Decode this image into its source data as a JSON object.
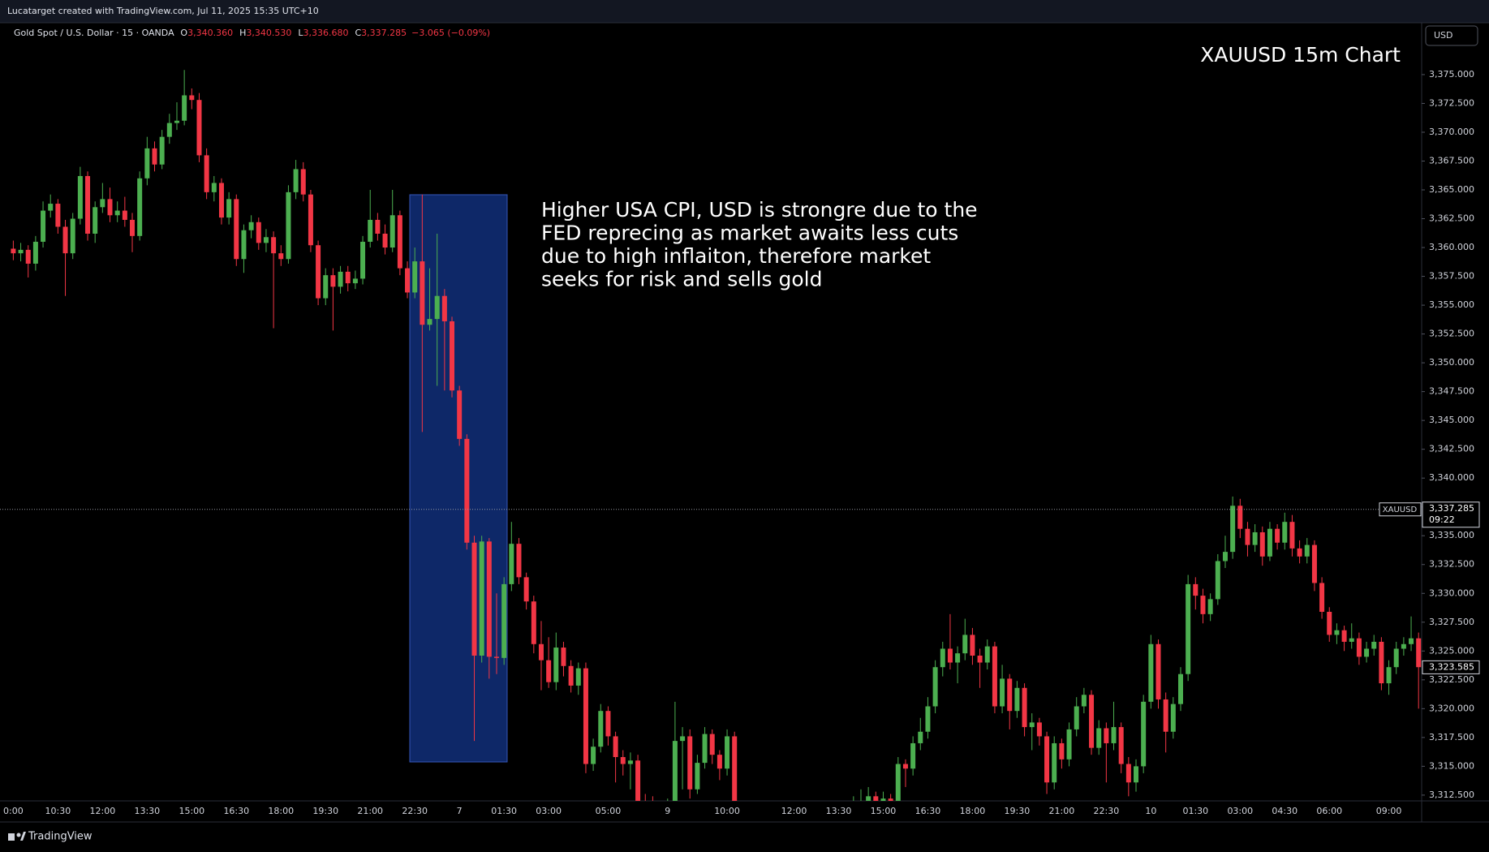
{
  "header": {
    "credit": "Lucatarget created with TradingView.com, Jul 11, 2025 15:35 UTC+10",
    "currency": "USD"
  },
  "legend": {
    "symbol": "Gold Spot / U.S. Dollar · 15 · OANDA",
    "ohlc": [
      {
        "key": "O",
        "value": "3,340.360"
      },
      {
        "key": "H",
        "value": "3,340.530"
      },
      {
        "key": "L",
        "value": "3,336.680"
      },
      {
        "key": "C",
        "value": "3,337.285"
      }
    ],
    "change": "−3.065 (−0.09%)"
  },
  "annotation": {
    "lines": [
      "Higher USA CPI, USD is strongre due to the",
      "FED reprecing as market awaits less cuts",
      "due to high inflaiton, therefore market",
      "seeks for risk and sells gold"
    ]
  },
  "footer": {
    "brand": "TradingView"
  },
  "chart_data": {
    "type": "candlestick",
    "title": "XAUUSD 15m Chart",
    "up_color": "#4caf50",
    "down_color": "#f23645",
    "categories": [
      "0:00",
      null,
      null,
      null,
      null,
      null,
      "10:30",
      null,
      null,
      null,
      null,
      null,
      "12:00",
      null,
      null,
      null,
      null,
      null,
      "13:30",
      null,
      null,
      null,
      null,
      null,
      "15:00",
      null,
      null,
      null,
      null,
      null,
      "16:30",
      null,
      null,
      null,
      null,
      null,
      "18:00",
      null,
      null,
      null,
      null,
      null,
      "19:30",
      null,
      null,
      null,
      null,
      null,
      "21:00",
      null,
      null,
      null,
      null,
      null,
      "22:30",
      null,
      null,
      null,
      null,
      null,
      "7",
      null,
      null,
      null,
      null,
      null,
      "01:30",
      null,
      null,
      null,
      null,
      null,
      "03:00",
      null,
      null,
      null,
      null,
      null,
      null,
      null,
      "05:00",
      null,
      null,
      null,
      null,
      null,
      null,
      null,
      "9",
      null,
      null,
      null,
      null,
      null,
      null,
      null,
      "10:00",
      null,
      null,
      null,
      null,
      null,
      null,
      null,
      null,
      "12:00",
      null,
      null,
      null,
      null,
      null,
      "13:30",
      null,
      null,
      null,
      null,
      null,
      "15:00",
      null,
      null,
      null,
      null,
      null,
      "16:30",
      null,
      null,
      null,
      null,
      null,
      "18:00",
      null,
      null,
      null,
      null,
      null,
      "19:30",
      null,
      null,
      null,
      null,
      null,
      "21:00",
      null,
      null,
      null,
      null,
      null,
      "22:30",
      null,
      null,
      null,
      null,
      null,
      "10",
      null,
      null,
      null,
      null,
      null,
      "01:30",
      null,
      null,
      null,
      null,
      null,
      "03:00",
      null,
      null,
      null,
      null,
      null,
      "04:30",
      null,
      null,
      null,
      null,
      null,
      "06:00",
      null,
      null,
      null,
      null,
      null,
      null,
      null,
      "09:00",
      null,
      null,
      null,
      null
    ],
    "open": [
      3359.9,
      3359.5,
      3359.8,
      3358.6,
      3360.5,
      3363.2,
      3363.8,
      3361.8,
      3359.5,
      3362.5,
      3366.2,
      3361.2,
      3363.5,
      3364.2,
      3362.8,
      3363.2,
      3362.4,
      3361.0,
      3366.0,
      3368.6,
      3367.2,
      3369.6,
      3370.8,
      3371.0,
      3373.2,
      3372.8,
      3368.0,
      3364.8,
      3365.6,
      3362.6,
      3364.2,
      3359.0,
      3361.5,
      3362.2,
      3360.4,
      3360.9,
      3359.5,
      3359.0,
      3364.8,
      3366.8,
      3364.6,
      3360.2,
      3355.6,
      3357.6,
      3356.6,
      3357.9,
      3356.9,
      3357.3,
      3360.5,
      3362.4,
      3361.2,
      3360.0,
      3362.8,
      3358.2,
      3356.1,
      3358.8,
      3353.3,
      3353.8,
      3355.8,
      3353.6,
      3347.6,
      3343.4,
      3334.4,
      3324.6,
      3334.5,
      3324.5,
      3324.4,
      3330.8,
      3334.3,
      3331.4,
      3329.3,
      3325.6,
      3324.2,
      3322.3,
      3325.3,
      3323.7,
      3322.0,
      3323.5,
      3315.2,
      3316.7,
      3319.8,
      3317.6,
      3315.8,
      3315.2,
      3315.5,
      3312.0,
      3311.9,
      3311.0,
      3310.5,
      3311.5,
      3317.2,
      3317.6,
      3313.0,
      3315.3,
      3317.8,
      3316.0,
      3314.8,
      3317.6,
      null,
      null,
      null,
      null,
      null,
      null,
      null,
      null,
      null,
      null,
      null,
      null,
      null,
      null,
      null,
      3311.5,
      3311.8,
      3312.0,
      3312.4,
      3311.8,
      3312.2,
      3312.0,
      3315.2,
      3314.8,
      3317.0,
      3318.0,
      3320.2,
      3323.6,
      3325.2,
      3324.0,
      3324.8,
      3326.4,
      3324.6,
      3324.0,
      3325.4,
      3320.2,
      3322.6,
      3319.8,
      3321.8,
      3318.4,
      3318.8,
      3317.6,
      3313.6,
      3317.0,
      3315.6,
      3318.2,
      3320.2,
      3321.2,
      3316.6,
      3318.3,
      3317.0,
      3318.4,
      3315.2,
      3313.6,
      3315.0,
      3320.6,
      3325.6,
      3320.8,
      3318.0,
      3320.4,
      3323.0,
      3330.8,
      3329.8,
      3328.2,
      3329.5,
      3332.8,
      3333.6,
      3337.6,
      3335.6,
      3334.2,
      3335.3,
      3333.2,
      3335.6,
      3334.4,
      3336.2,
      3333.9,
      3333.2,
      3334.2,
      3330.9,
      3328.4,
      3326.4,
      3326.8,
      3325.8,
      3326.1,
      3324.5,
      3325.2,
      3325.8,
      3322.2,
      3323.6,
      3325.2,
      3325.6,
      3326.1
    ],
    "high": [
      3360.6,
      3360.4,
      3360.2,
      3361.0,
      3364.0,
      3364.6,
      3364.2,
      3362.4,
      3363.0,
      3367.0,
      3366.6,
      3364.0,
      3365.6,
      3365.2,
      3364.0,
      3364.4,
      3363.0,
      3366.6,
      3369.6,
      3369.2,
      3370.2,
      3371.6,
      3372.6,
      3375.4,
      3373.8,
      3373.4,
      3368.6,
      3366.2,
      3366.0,
      3364.8,
      3364.6,
      3362.0,
      3362.8,
      3362.6,
      3361.6,
      3361.4,
      3360.2,
      3365.4,
      3367.6,
      3367.4,
      3365.0,
      3360.6,
      3358.2,
      3358.2,
      3358.4,
      3358.4,
      3358.0,
      3361.0,
      3365.0,
      3363.0,
      3362.0,
      3365.0,
      3363.2,
      3358.8,
      3360.0,
      3364.6,
      3358.2,
      3361.2,
      3356.4,
      3354.0,
      3348.0,
      3343.8,
      3335.0,
      3335.0,
      3334.8,
      3330.0,
      3331.4,
      3336.2,
      3334.8,
      3331.8,
      3329.8,
      3327.6,
      3326.2,
      3326.6,
      3325.8,
      3324.2,
      3324.0,
      3324.0,
      3317.4,
      3320.4,
      3320.2,
      3318.0,
      3316.4,
      3316.2,
      3316.0,
      3312.6,
      3312.4,
      3311.6,
      3312.2,
      3320.6,
      3318.4,
      3318.2,
      3316.0,
      3318.4,
      3318.2,
      3316.4,
      3318.2,
      3318.0,
      null,
      null,
      null,
      null,
      null,
      null,
      null,
      null,
      null,
      null,
      null,
      null,
      null,
      null,
      null,
      3312.4,
      3313.0,
      3313.2,
      3312.8,
      3312.8,
      3312.6,
      3315.8,
      3315.6,
      3317.6,
      3319.2,
      3321.0,
      3324.2,
      3325.8,
      3328.2,
      3325.4,
      3327.8,
      3327.0,
      3325.2,
      3326.0,
      3325.8,
      3323.8,
      3323.0,
      3322.4,
      3322.2,
      3319.6,
      3319.2,
      3318.0,
      3317.6,
      3317.4,
      3318.8,
      3321.0,
      3321.8,
      3321.6,
      3319.0,
      3318.8,
      3320.6,
      3318.8,
      3315.8,
      3315.6,
      3321.2,
      3326.4,
      3326.0,
      3321.4,
      3321.0,
      3323.6,
      3331.6,
      3331.4,
      3330.4,
      3330.0,
      3333.4,
      3335.0,
      3338.4,
      3338.2,
      3336.2,
      3336.0,
      3335.8,
      3336.2,
      3336.0,
      3337.0,
      3336.8,
      3334.6,
      3334.8,
      3334.6,
      3331.4,
      3328.8,
      3327.4,
      3327.2,
      3327.4,
      3326.6,
      3325.8,
      3326.4,
      3326.2,
      3324.2,
      3325.8,
      3326.2,
      3328.0,
      3326.6
    ],
    "low": [
      3358.9,
      3358.8,
      3357.4,
      3358.0,
      3360.0,
      3362.6,
      3361.2,
      3355.8,
      3359.0,
      3362.0,
      3360.6,
      3360.4,
      3363.0,
      3362.2,
      3362.2,
      3361.8,
      3359.6,
      3360.6,
      3365.4,
      3366.6,
      3366.8,
      3369.0,
      3370.2,
      3370.6,
      3372.0,
      3367.4,
      3364.2,
      3364.0,
      3362.0,
      3362.0,
      3358.4,
      3357.8,
      3360.8,
      3359.8,
      3359.6,
      3353.0,
      3358.4,
      3358.6,
      3364.2,
      3364.0,
      3359.6,
      3355.0,
      3355.0,
      3352.8,
      3356.0,
      3356.2,
      3356.4,
      3356.8,
      3360.0,
      3360.6,
      3359.4,
      3359.6,
      3357.6,
      3355.6,
      3355.6,
      3344.0,
      3352.8,
      3348.0,
      3347.6,
      3347.0,
      3342.8,
      3333.8,
      3317.2,
      3324.0,
      3322.6,
      3323.0,
      3323.8,
      3330.2,
      3330.8,
      3328.6,
      3324.8,
      3321.6,
      3321.8,
      3321.6,
      3322.8,
      3321.4,
      3321.2,
      3314.4,
      3314.6,
      3316.2,
      3316.8,
      3313.6,
      3314.2,
      3313.0,
      3311.2,
      3311.0,
      3310.2,
      3309.8,
      3309.8,
      3311.0,
      3313.0,
      3312.2,
      3312.6,
      3314.8,
      3315.2,
      3313.8,
      3314.2,
      3311.2,
      null,
      null,
      null,
      null,
      null,
      null,
      null,
      null,
      null,
      null,
      null,
      null,
      null,
      null,
      null,
      3310.8,
      3311.2,
      3311.4,
      3311.0,
      3311.2,
      3311.4,
      3311.6,
      3313.2,
      3314.2,
      3316.4,
      3317.4,
      3319.6,
      3322.8,
      3323.4,
      3322.2,
      3324.2,
      3323.8,
      3321.8,
      3323.4,
      3319.6,
      3319.6,
      3318.2,
      3319.2,
      3317.6,
      3316.4,
      3316.8,
      3312.6,
      3313.0,
      3314.8,
      3315.0,
      3317.6,
      3319.6,
      3316.0,
      3316.0,
      3313.6,
      3316.4,
      3314.4,
      3312.4,
      3312.8,
      3314.4,
      3320.0,
      3320.0,
      3316.2,
      3317.4,
      3319.8,
      3322.4,
      3328.6,
      3327.4,
      3327.6,
      3329.0,
      3332.2,
      3333.0,
      3334.8,
      3333.2,
      3333.6,
      3332.4,
      3332.8,
      3333.8,
      3333.8,
      3333.2,
      3332.6,
      3332.6,
      3330.2,
      3327.8,
      3325.8,
      3325.6,
      3325.0,
      3325.2,
      3323.8,
      3324.0,
      3324.6,
      3321.6,
      3321.2,
      3323.0,
      3324.6,
      3325.0,
      3320.0
    ],
    "close": [
      3359.5,
      3359.8,
      3358.6,
      3360.5,
      3363.2,
      3363.8,
      3361.8,
      3359.5,
      3362.5,
      3366.2,
      3361.2,
      3363.5,
      3364.2,
      3362.8,
      3363.2,
      3362.4,
      3361.0,
      3366.0,
      3368.6,
      3367.2,
      3369.6,
      3370.8,
      3371.0,
      3373.2,
      3372.8,
      3368.0,
      3364.8,
      3365.6,
      3362.6,
      3364.2,
      3359.0,
      3361.5,
      3362.2,
      3360.4,
      3360.9,
      3359.5,
      3359.0,
      3364.8,
      3366.8,
      3364.6,
      3360.2,
      3355.6,
      3357.6,
      3356.6,
      3357.9,
      3356.9,
      3357.3,
      3360.5,
      3362.4,
      3361.2,
      3360.0,
      3362.8,
      3358.2,
      3356.1,
      3358.8,
      3353.3,
      3353.8,
      3355.8,
      3353.6,
      3347.6,
      3343.4,
      3334.4,
      3324.6,
      3334.5,
      3324.5,
      3324.4,
      3330.8,
      3334.3,
      3331.4,
      3329.3,
      3325.6,
      3324.2,
      3322.3,
      3325.3,
      3323.7,
      3322.0,
      3323.5,
      3315.2,
      3316.7,
      3319.8,
      3317.6,
      3315.8,
      3315.2,
      3315.5,
      3312.0,
      3311.9,
      3311.0,
      3310.5,
      3311.5,
      3317.2,
      3317.6,
      3313.0,
      3315.3,
      3317.8,
      3316.0,
      3314.8,
      3317.6,
      3312.0,
      null,
      null,
      null,
      null,
      null,
      null,
      null,
      null,
      null,
      null,
      null,
      null,
      null,
      null,
      null,
      3311.8,
      3312.0,
      3312.4,
      3311.8,
      3312.2,
      3312.0,
      3315.2,
      3314.8,
      3317.0,
      3318.0,
      3320.2,
      3323.6,
      3325.2,
      3324.0,
      3324.8,
      3326.4,
      3324.6,
      3324.0,
      3325.4,
      3320.2,
      3322.6,
      3319.8,
      3321.8,
      3318.4,
      3318.8,
      3317.6,
      3313.6,
      3317.0,
      3315.6,
      3318.2,
      3320.2,
      3321.2,
      3316.6,
      3318.3,
      3317.0,
      3318.4,
      3315.2,
      3313.6,
      3315.0,
      3320.6,
      3325.6,
      3320.8,
      3318.0,
      3320.4,
      3323.0,
      3330.8,
      3329.8,
      3328.2,
      3329.5,
      3332.8,
      3333.6,
      3337.6,
      3335.6,
      3334.2,
      3335.3,
      3333.2,
      3335.6,
      3334.4,
      3336.2,
      3333.9,
      3333.2,
      3334.2,
      3330.9,
      3328.4,
      3326.4,
      3326.8,
      3325.8,
      3326.1,
      3324.5,
      3325.2,
      3325.8,
      3322.2,
      3323.6,
      3325.2,
      3325.6,
      3326.1,
      3323.6
    ],
    "ylim": [
      3312.0,
      3379.5
    ],
    "yticks": [
      {
        "value": 3312.5,
        "label": "3,312.500"
      },
      {
        "value": 3315,
        "label": "3,315.000"
      },
      {
        "value": 3317.5,
        "label": "3,317.500"
      },
      {
        "value": 3320,
        "label": "3,320.000"
      },
      {
        "value": 3322.5,
        "label": "3,322.500"
      },
      {
        "value": 3325,
        "label": "3,325.000"
      },
      {
        "value": 3327.5,
        "label": "3,327.500"
      },
      {
        "value": 3330,
        "label": "3,330.000"
      },
      {
        "value": 3332.5,
        "label": "3,332.500"
      },
      {
        "value": 3335,
        "label": "3,335.000"
      },
      {
        "value": 3337.5,
        "label": "3,337.500"
      },
      {
        "value": 3340,
        "label": "3,340.000"
      },
      {
        "value": 3342.5,
        "label": "3,342.500"
      },
      {
        "value": 3345,
        "label": "3,345.000"
      },
      {
        "value": 3347.5,
        "label": "3,347.500"
      },
      {
        "value": 3350,
        "label": "3,350.000"
      },
      {
        "value": 3352.5,
        "label": "3,352.500"
      },
      {
        "value": 3355,
        "label": "3,355.000"
      },
      {
        "value": 3357.5,
        "label": "3,357.500"
      },
      {
        "value": 3360,
        "label": "3,360.000"
      },
      {
        "value": 3362.5,
        "label": "3,362.500"
      },
      {
        "value": 3365,
        "label": "3,365.000"
      },
      {
        "value": 3367.5,
        "label": "3,367.500"
      },
      {
        "value": 3370,
        "label": "3,370.000"
      },
      {
        "value": 3372.5,
        "label": "3,372.500"
      },
      {
        "value": 3375,
        "label": "3,375.000"
      }
    ],
    "price_line": {
      "symbol": "XAUUSD",
      "value": 3337.285,
      "label": "3,337.285",
      "countdown": "09:22"
    },
    "last_price": {
      "value": 3323.585,
      "label": "3,323.585"
    }
  }
}
